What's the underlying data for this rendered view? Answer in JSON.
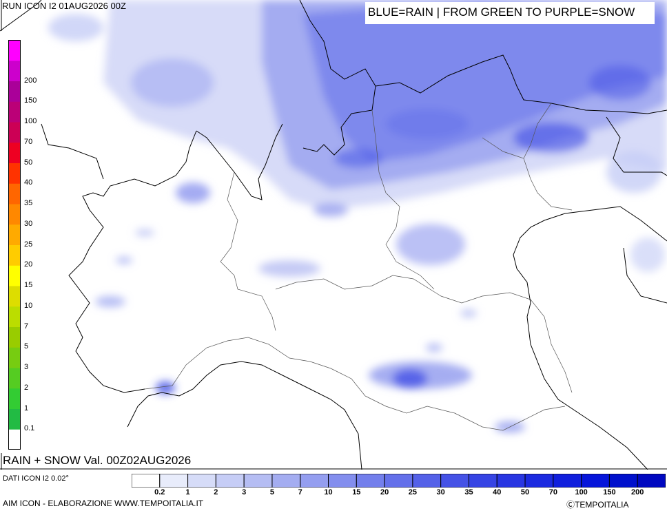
{
  "header": {
    "run_title": "RUN ICON I2 01AUG2026 00Z",
    "legend_banner": "BLUE=RAIN | FROM GREEN TO PURPLE=SNOW"
  },
  "product_title": "RAIN + SNOW Val. 00Z02AUG2026",
  "footer": {
    "data_source": "DATI ICON I2 0.02°",
    "elaboration": "AIM ICON - ELABORAZIONE WWW.TEMPOITALIA.IT",
    "copyright": "ⒸTEMPOITALIA"
  },
  "snow_scale": {
    "labels": [
      "0.1",
      "1",
      "2",
      "3",
      "5",
      "7",
      "10",
      "15",
      "20",
      "25",
      "30",
      "35",
      "40",
      "50",
      "70",
      "100",
      "150",
      "200"
    ],
    "colors": [
      "#ffffff",
      "#22bb44",
      "#33cc33",
      "#55cc22",
      "#77cc11",
      "#99cc00",
      "#bbdd00",
      "#dddd00",
      "#ffff00",
      "#ffcc00",
      "#ffaa00",
      "#ff8800",
      "#ff6600",
      "#ff3300",
      "#ee0022",
      "#cc0055",
      "#bb0077",
      "#aa0099",
      "#cc00cc",
      "#ff00ff"
    ]
  },
  "rain_scale": {
    "labels": [
      "0.2",
      "1",
      "2",
      "3",
      "5",
      "7",
      "10",
      "15",
      "20",
      "25",
      "30",
      "35",
      "40",
      "50",
      "70",
      "100",
      "150",
      "200"
    ],
    "colors": [
      "#ffffff",
      "#e8ecfb",
      "#d6dcf8",
      "#c6cdf6",
      "#b5bdf3",
      "#a4adf1",
      "#949ef0",
      "#838eee",
      "#737fec",
      "#6470ea",
      "#5461e8",
      "#4552e6",
      "#3644e4",
      "#2836e2",
      "#1b2ae0",
      "#101fdd",
      "#0615da",
      "#0010cc",
      "#0008c0"
    ]
  }
}
